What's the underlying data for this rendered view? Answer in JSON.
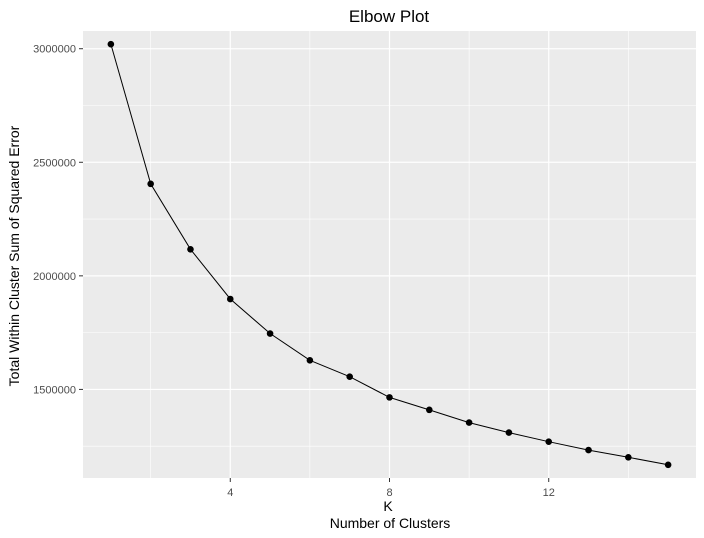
{
  "chart_data": {
    "type": "line",
    "title": "Elbow Plot",
    "xlabel": "K",
    "xlabel_sub": "Number of Clusters",
    "ylabel": "Total Within Cluster Sum of Squared Error",
    "x": [
      1,
      2,
      3,
      4,
      5,
      6,
      7,
      8,
      9,
      10,
      11,
      12,
      13,
      14,
      15
    ],
    "series": [
      {
        "values": [
          3020000,
          2405000,
          2117000,
          1898000,
          1746000,
          1628000,
          1556000,
          1465000,
          1410000,
          1354000,
          1310000,
          1270000,
          1233000,
          1201000,
          1168000
        ]
      }
    ],
    "xlim": [
      0.3,
      15.7
    ],
    "ylim": [
      1110000,
      3078000
    ],
    "x_ticks": [
      4,
      8,
      12
    ],
    "x_tick_labels": [
      "4",
      "8",
      "12"
    ],
    "y_ticks": [
      1500000,
      2000000,
      2500000,
      3000000
    ],
    "y_tick_labels": [
      "1500000",
      "2000000",
      "2500000",
      "3000000"
    ],
    "grid": true,
    "line_color": "#000000",
    "point_color": "#000000",
    "panel_color": "#ebebeb",
    "grid_color": "#ffffff"
  }
}
